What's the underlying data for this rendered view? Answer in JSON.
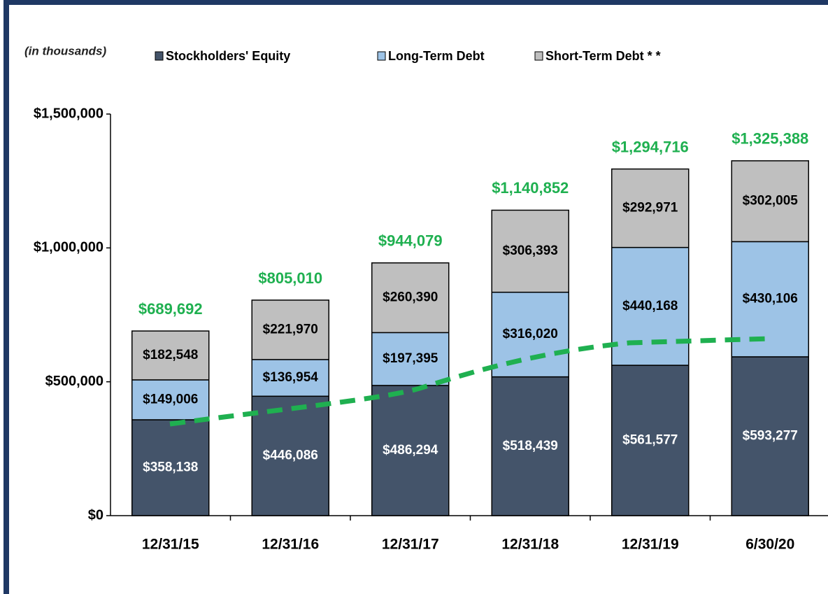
{
  "chart_data": {
    "type": "stacked_bar",
    "subtitle": "(in thousands)",
    "categories": [
      "12/31/15",
      "12/31/16",
      "12/31/17",
      "12/31/18",
      "12/31/19",
      "6/30/20"
    ],
    "series": [
      {
        "name": "Stockholders' Equity",
        "color": "#44546a",
        "label_color": "#ffffff",
        "values": [
          358138,
          446086,
          486294,
          518439,
          561577,
          593277
        ],
        "value_labels": [
          "$358,138",
          "$446,086",
          "$486,294",
          "$518,439",
          "$561,577",
          "$593,277"
        ]
      },
      {
        "name": "Long-Term Debt",
        "color": "#9dc3e6",
        "label_color": "#000000",
        "values": [
          149006,
          136954,
          197395,
          316020,
          440168,
          430106
        ],
        "value_labels": [
          "$149,006",
          "$136,954",
          "$197,395",
          "$316,020",
          "$440,168",
          "$430,106"
        ]
      },
      {
        "name": "Short-Term Debt * *",
        "color": "#bfbfbf",
        "label_color": "#000000",
        "values": [
          182548,
          221970,
          260390,
          306393,
          292971,
          302005
        ],
        "value_labels": [
          "$182,548",
          "$221,970",
          "$260,390",
          "$306,393",
          "$292,971",
          "$302,005"
        ]
      }
    ],
    "total_labels": [
      "$689,692",
      "$805,010",
      "$944,079",
      "$1,140,852",
      "$1,294,716",
      "$1,325,388"
    ],
    "total_label_color": "#1fb050",
    "ylim": [
      0,
      1500000
    ],
    "yticks": [
      {
        "value": 0,
        "label": "$0"
      },
      {
        "value": 500000,
        "label": "$500,000"
      },
      {
        "value": 1000000,
        "label": "$1,000,000"
      },
      {
        "value": 1500000,
        "label": "$1,500,000"
      }
    ]
  }
}
